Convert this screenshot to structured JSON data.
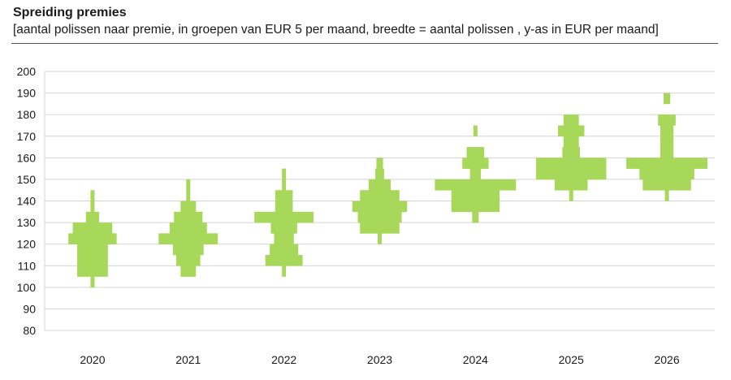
{
  "header": {
    "title": "Spreiding premies",
    "subtitle": "[aantal polissen naar premie, in groepen van EUR 5 per maand, breedte = aantal polissen , y-as in EUR per maand]"
  },
  "chart_data": {
    "type": "violin-histogram",
    "title": "Spreiding premies",
    "ylabel": "EUR per maand",
    "bin_size": 5,
    "ylim": [
      80,
      200
    ],
    "yticks": [
      80,
      90,
      100,
      110,
      120,
      130,
      140,
      150,
      160,
      170,
      180,
      190,
      200
    ],
    "categories": [
      "2020",
      "2021",
      "2022",
      "2023",
      "2024",
      "2025",
      "2026"
    ],
    "color": "#a8d85a",
    "series": [
      {
        "name": "2020",
        "bins": [
          [
            100,
            105,
            1
          ],
          [
            105,
            110,
            14
          ],
          [
            110,
            115,
            14
          ],
          [
            115,
            120,
            14
          ],
          [
            120,
            125,
            22
          ],
          [
            125,
            130,
            18
          ],
          [
            130,
            135,
            6
          ],
          [
            135,
            140,
            1
          ],
          [
            140,
            145,
            1
          ]
        ]
      },
      {
        "name": "2021",
        "bins": [
          [
            105,
            110,
            7
          ],
          [
            110,
            115,
            11
          ],
          [
            115,
            120,
            14
          ],
          [
            120,
            125,
            27
          ],
          [
            125,
            130,
            17
          ],
          [
            130,
            135,
            13
          ],
          [
            135,
            140,
            7
          ],
          [
            140,
            145,
            1
          ],
          [
            145,
            150,
            1
          ]
        ]
      },
      {
        "name": "2022",
        "bins": [
          [
            105,
            110,
            1
          ],
          [
            110,
            115,
            17
          ],
          [
            115,
            120,
            13
          ],
          [
            120,
            125,
            9
          ],
          [
            125,
            130,
            12
          ],
          [
            130,
            135,
            27
          ],
          [
            135,
            140,
            8
          ],
          [
            140,
            145,
            8
          ],
          [
            145,
            150,
            1
          ],
          [
            150,
            155,
            1
          ]
        ]
      },
      {
        "name": "2023",
        "bins": [
          [
            120,
            125,
            1
          ],
          [
            125,
            130,
            18
          ],
          [
            130,
            135,
            20
          ],
          [
            135,
            140,
            25
          ],
          [
            140,
            145,
            18
          ],
          [
            145,
            150,
            10
          ],
          [
            150,
            155,
            4
          ],
          [
            155,
            160,
            3
          ]
        ]
      },
      {
        "name": "2024",
        "bins": [
          [
            130,
            135,
            3
          ],
          [
            135,
            140,
            22
          ],
          [
            140,
            145,
            22
          ],
          [
            145,
            150,
            37
          ],
          [
            150,
            155,
            5
          ],
          [
            155,
            160,
            12
          ],
          [
            160,
            165,
            8
          ],
          [
            170,
            175,
            1
          ]
        ]
      },
      {
        "name": "2025",
        "bins": [
          [
            140,
            145,
            1
          ],
          [
            145,
            150,
            15
          ],
          [
            150,
            155,
            32
          ],
          [
            155,
            160,
            32
          ],
          [
            160,
            165,
            8
          ],
          [
            165,
            170,
            7
          ],
          [
            170,
            175,
            12
          ],
          [
            175,
            180,
            7
          ]
        ]
      },
      {
        "name": "2026",
        "bins": [
          [
            140,
            145,
            1
          ],
          [
            145,
            150,
            22
          ],
          [
            150,
            155,
            25
          ],
          [
            155,
            160,
            37
          ],
          [
            160,
            165,
            6
          ],
          [
            165,
            170,
            6
          ],
          [
            170,
            175,
            6
          ],
          [
            175,
            180,
            8
          ],
          [
            185,
            190,
            3
          ]
        ]
      }
    ]
  }
}
